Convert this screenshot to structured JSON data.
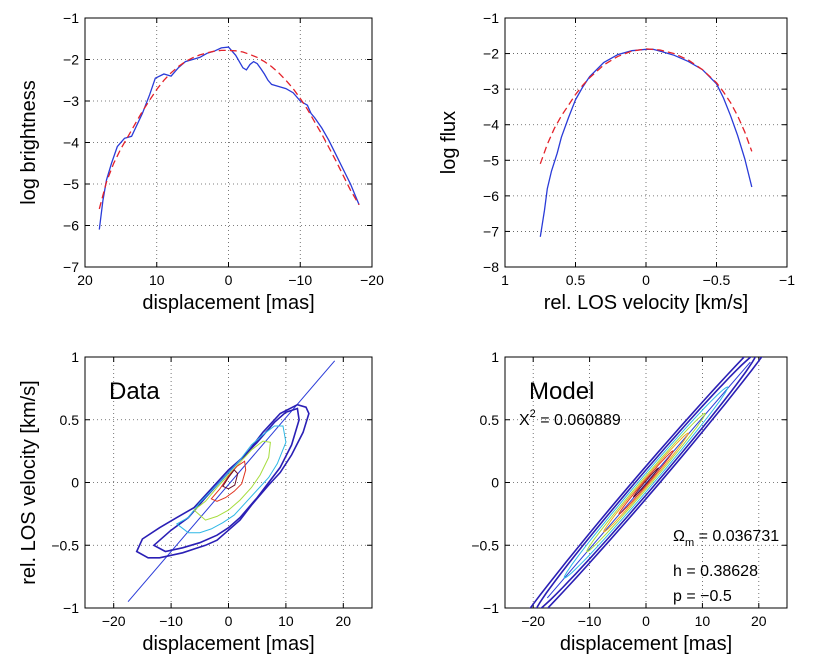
{
  "figure": {
    "colors": {
      "data_line": "#2a3bd8",
      "model_line": "#e4222a",
      "contour_levels": [
        "#2a1fb5",
        "#2a1fb5",
        "#2fb8e6",
        "#a6dd3d",
        "#f2a323",
        "#e0321f",
        "#6b0d2a"
      ],
      "axes": "#000000",
      "grid": "#555555"
    }
  },
  "chart_data": [
    {
      "type": "line",
      "xlabel": "displacement [mas]",
      "ylabel": "log brightness",
      "xlim": [
        20,
        -20
      ],
      "ylim": [
        -7,
        -1
      ],
      "xticks": [
        "20",
        "10",
        "0",
        "−10",
        "−20"
      ],
      "yticks": [
        "−7",
        "−6",
        "−5",
        "−4",
        "−3",
        "−2",
        "−1"
      ],
      "grid": true,
      "series": [
        {
          "style": "solid-blue",
          "x": [
            18,
            17.5,
            17,
            16.3,
            15.5,
            14.5,
            13.5,
            12,
            11,
            10.2,
            9,
            8,
            7,
            6,
            5,
            4,
            3,
            2,
            1,
            0,
            -0.5,
            -1,
            -1.5,
            -2,
            -2.5,
            -3,
            -3.5,
            -4,
            -4.5,
            -5,
            -5.5,
            -6,
            -7,
            -8,
            -9,
            -10,
            -11,
            -11.5,
            -12,
            -13,
            -14,
            -15,
            -16,
            -17,
            -18.2
          ],
          "y": [
            -6.1,
            -5.4,
            -4.9,
            -4.5,
            -4.1,
            -3.9,
            -3.85,
            -3.3,
            -2.85,
            -2.45,
            -2.35,
            -2.4,
            -2.2,
            -2.05,
            -2.0,
            -1.95,
            -1.85,
            -1.8,
            -1.72,
            -1.7,
            -1.8,
            -1.9,
            -2.05,
            -2.2,
            -2.25,
            -2.12,
            -2.05,
            -2.1,
            -2.22,
            -2.35,
            -2.5,
            -2.6,
            -2.65,
            -2.7,
            -2.8,
            -3.0,
            -3.1,
            -3.3,
            -3.4,
            -3.65,
            -3.95,
            -4.3,
            -4.65,
            -5.0,
            -5.5
          ]
        },
        {
          "style": "dashed-red",
          "x": [
            18,
            17,
            16,
            15,
            14,
            13,
            12,
            11,
            10,
            9,
            8,
            7,
            6,
            5,
            4,
            3,
            2,
            1,
            0,
            -1,
            -2,
            -3,
            -4,
            -5,
            -6,
            -7,
            -8,
            -9,
            -10,
            -11,
            -12,
            -13,
            -14,
            -15,
            -16,
            -17,
            -18.2
          ],
          "y": [
            -5.6,
            -4.95,
            -4.5,
            -4.15,
            -3.85,
            -3.55,
            -3.25,
            -2.98,
            -2.72,
            -2.5,
            -2.32,
            -2.17,
            -2.05,
            -1.96,
            -1.89,
            -1.84,
            -1.8,
            -1.78,
            -1.78,
            -1.79,
            -1.82,
            -1.88,
            -1.95,
            -2.05,
            -2.17,
            -2.32,
            -2.5,
            -2.7,
            -2.94,
            -3.2,
            -3.5,
            -3.8,
            -4.12,
            -4.45,
            -4.8,
            -5.15,
            -5.5
          ]
        }
      ]
    },
    {
      "type": "line",
      "xlabel": "rel. LOS velocity [km/s]",
      "ylabel": "log flux",
      "xlim": [
        1,
        -1
      ],
      "ylim": [
        -8,
        -1
      ],
      "xticks": [
        "1",
        "0.5",
        "0",
        "−0.5",
        "−1"
      ],
      "yticks": [
        "−8",
        "−7",
        "−6",
        "−5",
        "−4",
        "−3",
        "−2",
        "−1"
      ],
      "grid": true,
      "series": [
        {
          "style": "solid-blue",
          "x": [
            0.75,
            0.72,
            0.7,
            0.67,
            0.63,
            0.6,
            0.55,
            0.5,
            0.45,
            0.4,
            0.3,
            0.2,
            0.1,
            0.0,
            -0.05,
            -0.1,
            -0.2,
            -0.3,
            -0.4,
            -0.5,
            -0.55,
            -0.6,
            -0.65,
            -0.7,
            -0.75
          ],
          "y": [
            -7.15,
            -6.4,
            -5.8,
            -5.3,
            -4.8,
            -4.35,
            -3.8,
            -3.3,
            -2.95,
            -2.65,
            -2.25,
            -2.03,
            -1.92,
            -1.88,
            -1.88,
            -1.93,
            -2.05,
            -2.22,
            -2.45,
            -2.85,
            -3.25,
            -3.75,
            -4.3,
            -4.95,
            -5.75
          ]
        },
        {
          "style": "dashed-red",
          "x": [
            0.75,
            0.7,
            0.65,
            0.6,
            0.55,
            0.5,
            0.45,
            0.4,
            0.3,
            0.2,
            0.1,
            0.0,
            -0.1,
            -0.2,
            -0.3,
            -0.4,
            -0.5,
            -0.55,
            -0.6,
            -0.65,
            -0.7,
            -0.75
          ],
          "y": [
            -5.1,
            -4.55,
            -4.1,
            -3.75,
            -3.45,
            -3.15,
            -2.9,
            -2.68,
            -2.32,
            -2.08,
            -1.93,
            -1.87,
            -1.9,
            -2.0,
            -2.18,
            -2.45,
            -2.82,
            -3.08,
            -3.38,
            -3.75,
            -4.2,
            -4.75
          ]
        }
      ]
    },
    {
      "type": "contour",
      "title": "Data",
      "xlabel": "displacement [mas]",
      "ylabel": "rel. LOS velocity [km/s]",
      "xlim": [
        -25,
        25
      ],
      "ylim": [
        -1,
        1
      ],
      "xticks": [
        "−20",
        "−10",
        "0",
        "10",
        "20"
      ],
      "yticks": [
        "−1",
        "−0.5",
        "0",
        "0.5",
        "1"
      ],
      "grid": true,
      "fit_line": {
        "x": [
          -17.5,
          18.5
        ],
        "y": [
          -0.95,
          0.97
        ]
      },
      "contours": [
        {
          "level": 0,
          "x": [
            -16,
            -15,
            -12,
            -9,
            -6,
            -3,
            0,
            3,
            6,
            9,
            12,
            13.5,
            14,
            13,
            11,
            9,
            7,
            4,
            2,
            0,
            -2,
            -4,
            -6,
            -8,
            -10,
            -12,
            -14,
            -16
          ],
          "y": [
            -0.55,
            -0.45,
            -0.36,
            -0.28,
            -0.2,
            -0.05,
            0.1,
            0.22,
            0.4,
            0.55,
            0.62,
            0.6,
            0.55,
            0.4,
            0.22,
            0.08,
            -0.02,
            -0.18,
            -0.3,
            -0.38,
            -0.46,
            -0.5,
            -0.53,
            -0.56,
            -0.58,
            -0.6,
            -0.6,
            -0.55
          ]
        },
        {
          "level": 1,
          "x": [
            -13,
            -10,
            -7,
            -4,
            -2,
            0,
            2,
            5,
            8,
            10,
            12,
            12.3,
            11,
            9,
            7,
            5,
            2,
            0,
            -2,
            -5,
            -8,
            -11,
            -13
          ],
          "y": [
            -0.5,
            -0.38,
            -0.28,
            -0.12,
            -0.02,
            0.08,
            0.18,
            0.32,
            0.48,
            0.56,
            0.59,
            0.5,
            0.3,
            0.12,
            0.0,
            -0.12,
            -0.28,
            -0.36,
            -0.42,
            -0.48,
            -0.52,
            -0.55,
            -0.5
          ]
        },
        {
          "level": 2,
          "x": [
            -9,
            -7,
            -5,
            -2,
            0,
            2,
            4,
            6,
            8,
            9.5,
            10,
            8.5,
            7,
            5,
            3,
            1,
            -1,
            -3,
            -5,
            -7,
            -9
          ],
          "y": [
            -0.33,
            -0.28,
            -0.16,
            -0.02,
            0.08,
            0.18,
            0.3,
            0.38,
            0.45,
            0.45,
            0.32,
            0.15,
            0.04,
            -0.06,
            -0.16,
            -0.26,
            -0.32,
            -0.37,
            -0.4,
            -0.4,
            -0.33
          ]
        },
        {
          "level": 3,
          "x": [
            -6,
            -4,
            -2,
            0,
            2,
            4,
            6,
            7.3,
            7,
            5.5,
            4,
            2,
            0,
            -2,
            -4,
            -6
          ],
          "y": [
            -0.22,
            -0.15,
            -0.04,
            0.06,
            0.16,
            0.26,
            0.33,
            0.32,
            0.2,
            0.06,
            -0.04,
            -0.14,
            -0.22,
            -0.27,
            -0.3,
            -0.22
          ]
        },
        {
          "level": 5,
          "x": [
            -3,
            -1.5,
            0,
            1.5,
            2.8,
            3,
            2.3,
            1,
            -0.5,
            -2,
            -3
          ],
          "y": [
            -0.13,
            -0.05,
            0.05,
            0.13,
            0.17,
            0.1,
            -0.01,
            -0.07,
            -0.12,
            -0.15,
            -0.13
          ]
        },
        {
          "level": 6,
          "x": [
            -1,
            0,
            1,
            1.6,
            1.1,
            0,
            -1
          ],
          "y": [
            -0.03,
            0.04,
            0.1,
            0.07,
            -0.02,
            -0.05,
            -0.03
          ]
        }
      ]
    },
    {
      "type": "contour",
      "title": "Model",
      "xlabel": "displacement [mas]",
      "ylabel": "",
      "xlim": [
        -25,
        25
      ],
      "ylim": [
        -1,
        1
      ],
      "xticks": [
        "−20",
        "−10",
        "0",
        "10",
        "20"
      ],
      "yticks": [
        "−1",
        "−0.5",
        "0",
        "0.5",
        "1"
      ],
      "grid": true,
      "fit_line": {
        "x": [
          -17.5,
          18.5
        ],
        "y": [
          -0.92,
          0.96
        ]
      },
      "ellipses": [
        {
          "level": 0,
          "a": 24.5,
          "b": 0.13
        },
        {
          "level": 1,
          "a": 19.5,
          "b": 0.1
        },
        {
          "level": 2,
          "a": 14.5,
          "b": 0.075
        },
        {
          "level": 3,
          "a": 10.5,
          "b": 0.055
        },
        {
          "level": 4,
          "a": 7.5,
          "b": 0.04
        },
        {
          "level": 5,
          "a": 4.8,
          "b": 0.026
        },
        {
          "level": 6,
          "a": 2.2,
          "b": 0.013
        }
      ],
      "annotations": {
        "chi_base": "X",
        "chi_exp": "2",
        "chi_value": " = 0.060889",
        "omega_base": "Ω",
        "omega_sub": "m",
        "omega_value": " = 0.036731",
        "h_text": "h = 0.38628",
        "p_text": "p = −0.5"
      }
    }
  ]
}
